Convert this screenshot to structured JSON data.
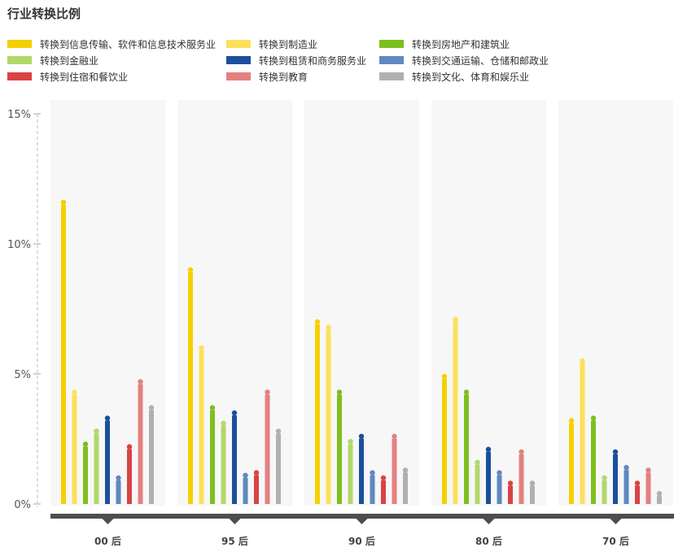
{
  "chart_data": {
    "type": "bar",
    "title": "行业转换比例",
    "categories": [
      "00 后",
      "95 后",
      "90 后",
      "80 后",
      "70 后"
    ],
    "y_ticks": [
      "0%",
      "5%",
      "10%",
      "15%"
    ],
    "ylim": [
      0,
      15
    ],
    "grid": false,
    "legend_position": "top",
    "series": [
      {
        "name": "转换到信息传输、软件和信息技术服务业",
        "color": "#f5d000",
        "values": [
          11.6,
          9.0,
          7.0,
          4.9,
          3.2
        ]
      },
      {
        "name": "转换到制造业",
        "color": "#fde05a",
        "values": [
          4.3,
          6.0,
          6.8,
          7.1,
          5.5
        ]
      },
      {
        "name": "转换到房地产和建筑业",
        "color": "#7ebf1e",
        "values": [
          2.3,
          3.7,
          4.3,
          4.3,
          3.3
        ]
      },
      {
        "name": "转换到金融业",
        "color": "#b1d86b",
        "values": [
          2.8,
          3.1,
          2.4,
          1.6,
          1.0
        ]
      },
      {
        "name": "转换到租赁和商务服务业",
        "color": "#1b4f9c",
        "values": [
          3.3,
          3.5,
          2.6,
          2.1,
          2.0
        ]
      },
      {
        "name": "转换到交通运输、仓储和邮政业",
        "color": "#5f88c2",
        "values": [
          1.0,
          1.1,
          1.2,
          1.2,
          1.4
        ]
      },
      {
        "name": "转换到住宿和餐饮业",
        "color": "#d94343",
        "values": [
          2.2,
          1.2,
          1.0,
          0.8,
          0.8
        ]
      },
      {
        "name": "转换到教育",
        "color": "#e48080",
        "values": [
          4.7,
          4.3,
          2.6,
          2.0,
          1.3
        ]
      },
      {
        "name": "转换到文化、体育和娱乐业",
        "color": "#b0b0b0",
        "values": [
          3.7,
          2.8,
          1.3,
          0.8,
          0.4
        ]
      }
    ]
  }
}
